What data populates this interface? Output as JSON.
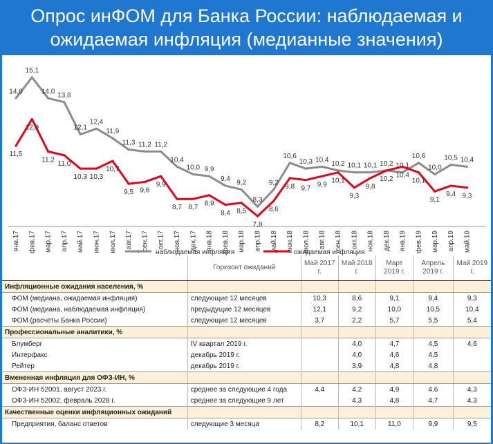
{
  "title": "Опрос инФОМ для Банка России: наблюдаемая и ожидаемая инфляция (медианные значения)",
  "chart_data": {
    "type": "line",
    "categories": [
      "янв.17",
      "фев.17",
      "мар.17",
      "апр.17",
      "май.17",
      "июн.17",
      "июл.17",
      "авг.17",
      "сен.17",
      "окт.17",
      "ноя.17",
      "дек.17",
      "янв.18",
      "фев.18",
      "мар.18",
      "апр.18",
      "май.18",
      "июн.18",
      "июл.18",
      "авг.18",
      "сен.18",
      "окт.18",
      "ноя.18",
      "дек.18",
      "янв.19",
      "фев.19",
      "мар.19",
      "апр.19",
      "май.19"
    ],
    "series": [
      {
        "name": "наблюдаемая инфляция",
        "color": "#8c8c8c",
        "values": [
          14.0,
          15.1,
          14.0,
          13.8,
          12.1,
          12.4,
          11.9,
          11.3,
          11.2,
          11.2,
          10.4,
          10.0,
          9.9,
          9.4,
          9.2,
          8.3,
          9.2,
          10.6,
          10.3,
          10.4,
          10.2,
          10.1,
          10.1,
          10.2,
          10.1,
          10.6,
          10.0,
          10.5,
          10.4
        ]
      },
      {
        "name": "ожидаемая инфляция",
        "color": "#e3001b",
        "values": [
          11.5,
          12.9,
          11.2,
          11.0,
          10.3,
          10.3,
          10.7,
          9.5,
          9.6,
          9.9,
          8.7,
          8.7,
          8.9,
          8.4,
          8.5,
          7.8,
          8.6,
          9.8,
          9.7,
          9.9,
          10.1,
          9.3,
          9.8,
          10.2,
          10.4,
          10.1,
          9.1,
          9.4,
          9.3
        ]
      }
    ],
    "ylim": [
      7.0,
      16.0
    ]
  },
  "table": {
    "headers": [
      "",
      "Горизонт ожиданий",
      "Май 2017 г.",
      "Май 2018 г.",
      "Март 2019 г.",
      "Апрель 2019 г.",
      "Май 2019 г."
    ],
    "sections": [
      {
        "title": "Инфляционные ожидания населения, %",
        "rows": [
          {
            "label": "ФОМ (медиана, ожидаемая инфляция)",
            "horizon": "следующие 12 месяцев",
            "values": [
              "10,3",
              "8,6",
              "9,1",
              "9,4",
              "9,3"
            ]
          },
          {
            "label": "ФОМ (медиана, наблюдаемая инфляция)",
            "horizon": "предыдущие 12 месяцев",
            "values": [
              "12,1",
              "9,2",
              "10,0",
              "10,5",
              "10,4"
            ]
          },
          {
            "label": "ФОМ (расчеты Банка России)",
            "horizon": "следующие 12 месяцев",
            "values": [
              "3,7",
              "2,2",
              "5,7",
              "5,5",
              "5,4"
            ]
          }
        ]
      },
      {
        "title": "Профессиональные аналитики, %",
        "rows": [
          {
            "label": "Блумберг",
            "horizon": "IV квартал 2019 г.",
            "values": [
              "",
              "4,0",
              "4,7",
              "4,5",
              "4,6"
            ]
          },
          {
            "label": "Интерфакс",
            "horizon": "декабрь 2019 г.",
            "values": [
              "",
              "4,0",
              "4,6",
              "4,5",
              ""
            ]
          },
          {
            "label": "Рейтер",
            "horizon": "декабрь 2019 г.",
            "values": [
              "",
              "3,9",
              "4,8",
              "4,8",
              ""
            ]
          }
        ]
      },
      {
        "title": "Вмененная инфляция для ОФЗ-ИН, %",
        "rows": [
          {
            "label": "ОФЗ-ИН 52001, август 2023 г.",
            "horizon": "среднее за следующие 4 года",
            "values": [
              "4,4",
              "4,2",
              "4,9",
              "4,6",
              "4,3"
            ]
          },
          {
            "label": "ОФЗ-ИН 52002, февраль 2028 г.",
            "horizon": "среднее за следующие 9 лет",
            "values": [
              "",
              "4,3",
              "4,8",
              "4,7",
              "4,3"
            ]
          }
        ]
      },
      {
        "title": "Качественные оценки инфляционных ожиданий",
        "rows": [
          {
            "label": "Предприятия, баланс ответов",
            "horizon": "следующие 3 месяца",
            "values": [
              "8,2",
              "10,1",
              "11,0",
              "9,9",
              "9,5"
            ]
          }
        ]
      }
    ]
  }
}
